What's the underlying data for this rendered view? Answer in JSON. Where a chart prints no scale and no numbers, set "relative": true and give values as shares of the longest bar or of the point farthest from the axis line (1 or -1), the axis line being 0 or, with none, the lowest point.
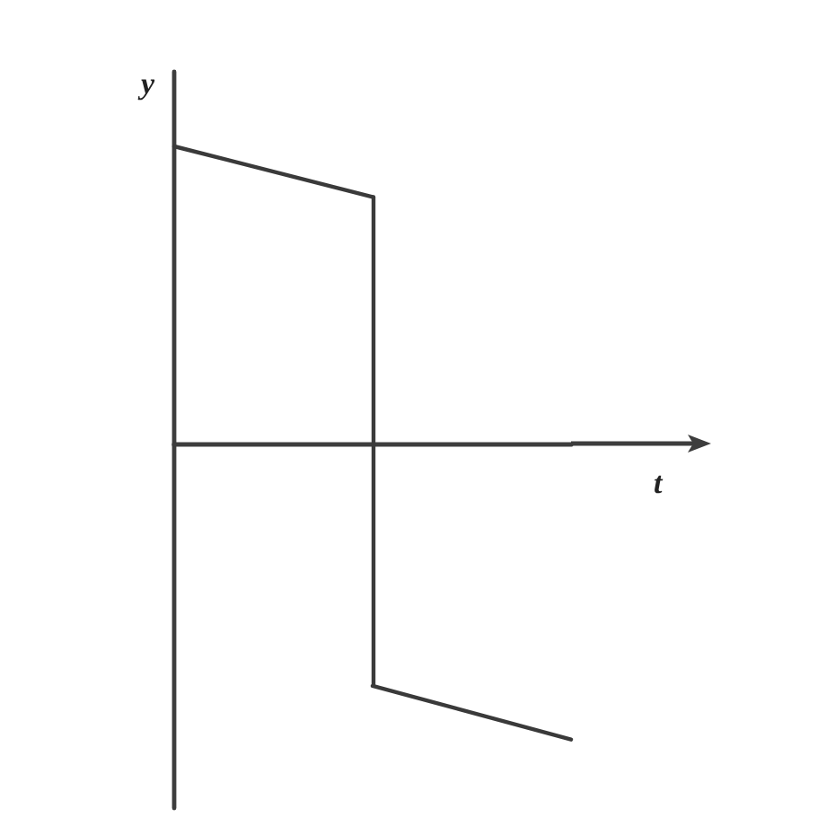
{
  "chart_data": {
    "type": "line",
    "xlabel": "t",
    "ylabel": "y",
    "categories": [
      null,
      null,
      null
    ],
    "series": [
      {
        "color": "#3a3a3a",
        "values": [
          1,
          0.83,
          null
        ]
      },
      {
        "color": "#3a3a3a",
        "values": [
          null,
          -0.81,
          -0.99
        ]
      }
    ],
    "relative": true
  }
}
